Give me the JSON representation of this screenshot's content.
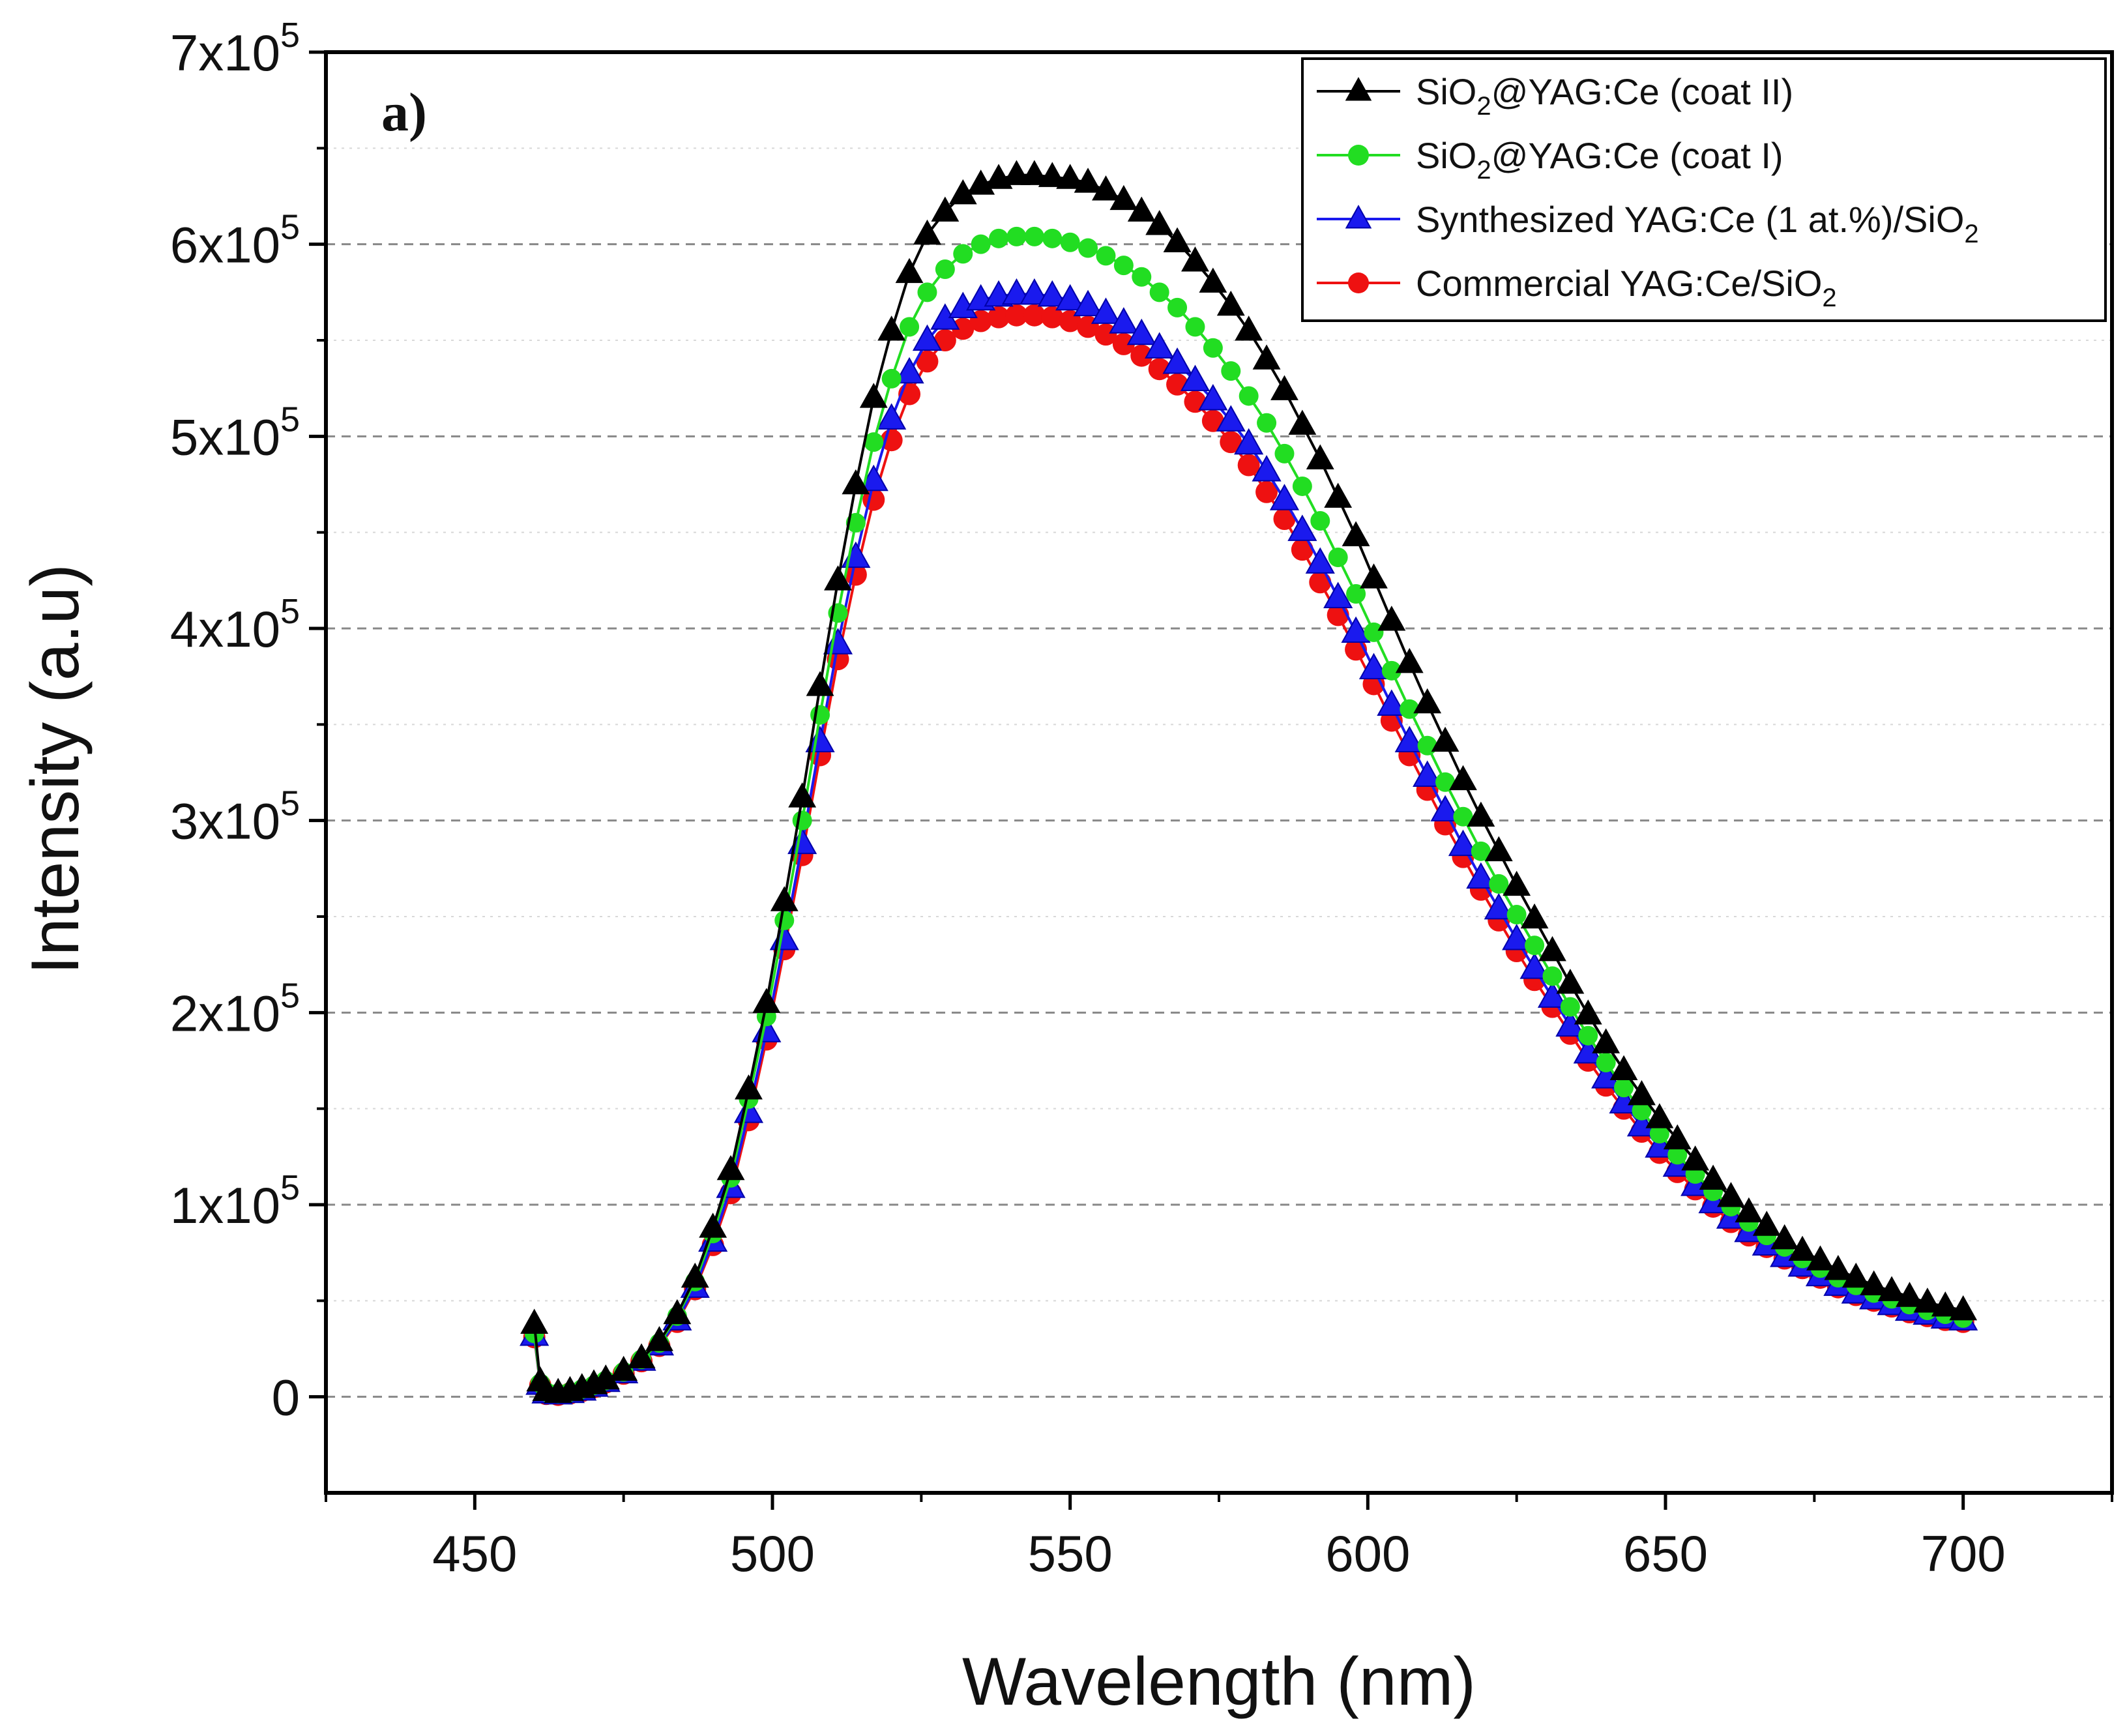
{
  "chart_data": {
    "type": "scatter",
    "panel_label": "a)",
    "xlabel": "Wavelength (nm)",
    "ylabel": "Intensity (a.u)",
    "xlim": [
      425,
      725
    ],
    "ylim": [
      -50000,
      700000
    ],
    "x_ticks": [
      450,
      500,
      550,
      600,
      650,
      700
    ],
    "y_ticks": [
      {
        "value": 0,
        "mant": "0",
        "exp": ""
      },
      {
        "value": 100000,
        "mant": "1x10",
        "exp": "5"
      },
      {
        "value": 200000,
        "mant": "2x10",
        "exp": "5"
      },
      {
        "value": 300000,
        "mant": "3x10",
        "exp": "5"
      },
      {
        "value": 400000,
        "mant": "4x10",
        "exp": "5"
      },
      {
        "value": 500000,
        "mant": "5x10",
        "exp": "5"
      },
      {
        "value": 600000,
        "mant": "6x10",
        "exp": "5"
      },
      {
        "value": 700000,
        "mant": "7x10",
        "exp": "5"
      }
    ],
    "grid": "horizontal dashed",
    "legend_position": "top-right",
    "x": [
      460,
      461,
      462,
      464,
      466,
      468,
      470,
      472,
      475,
      478,
      481,
      484,
      487,
      490,
      493,
      496,
      499,
      502,
      505,
      508,
      511,
      514,
      517,
      520,
      523,
      526,
      529,
      532,
      535,
      538,
      541,
      544,
      547,
      550,
      553,
      556,
      559,
      562,
      565,
      568,
      571,
      574,
      577,
      580,
      583,
      586,
      589,
      592,
      595,
      598,
      601,
      604,
      607,
      610,
      613,
      616,
      619,
      622,
      625,
      628,
      631,
      634,
      637,
      640,
      643,
      646,
      649,
      652,
      655,
      658,
      661,
      664,
      667,
      670,
      673,
      676,
      679,
      682,
      685,
      688,
      691,
      694,
      697,
      700
    ],
    "series": [
      {
        "name": "SiO",
        "name_sub": "2",
        "name_tail": "@YAG:Ce (coat II)",
        "color": "#000000",
        "marker": "triangle",
        "values": [
          38000,
          8000,
          3000,
          2000,
          3000,
          4500,
          6500,
          9000,
          13500,
          20000,
          29000,
          43000,
          62000,
          88000,
          118000,
          160000,
          205000,
          258000,
          312000,
          370000,
          425000,
          475000,
          520000,
          555000,
          585000,
          605000,
          617000,
          626000,
          631000,
          634000,
          636000,
          636000,
          635000,
          634000,
          632000,
          628000,
          623000,
          617000,
          610000,
          601000,
          591000,
          580000,
          568000,
          555000,
          540000,
          524000,
          506000,
          488000,
          468000,
          448000,
          426000,
          404000,
          382000,
          361000,
          341000,
          321000,
          302000,
          284000,
          266000,
          249000,
          232000,
          215000,
          199000,
          184000,
          170000,
          157000,
          145000,
          134000,
          123000,
          113000,
          104000,
          96000,
          89000,
          82000,
          76000,
          71000,
          66000,
          62000,
          58000,
          55000,
          52000,
          49000,
          47000,
          45000
        ]
      },
      {
        "name": "SiO",
        "name_sub": "2",
        "name_tail": "@YAG:Ce (coat I)",
        "color": "#22dd22",
        "marker": "circle",
        "values": [
          33000,
          7000,
          2500,
          1800,
          2500,
          4000,
          6000,
          8500,
          13000,
          19500,
          28000,
          42000,
          60000,
          85000,
          114000,
          155000,
          198000,
          248000,
          300000,
          355000,
          408000,
          455000,
          497000,
          530000,
          557000,
          575000,
          587000,
          595000,
          600000,
          603000,
          604000,
          604000,
          603000,
          601000,
          598000,
          594000,
          589000,
          583000,
          575000,
          567000,
          557000,
          546000,
          534000,
          521000,
          507000,
          491000,
          474000,
          456000,
          437000,
          418000,
          398000,
          378000,
          358000,
          339000,
          320000,
          302000,
          284000,
          267000,
          251000,
          235000,
          219000,
          203000,
          188000,
          174000,
          161000,
          149000,
          137000,
          126000,
          116000,
          107000,
          99000,
          91000,
          84000,
          78000,
          72000,
          67000,
          62000,
          58000,
          54000,
          51000,
          48000,
          45000,
          43000,
          41000
        ]
      },
      {
        "name": "Synthesized YAG:Ce (1 at.%)/SiO",
        "name_sub": "2",
        "name_tail": "",
        "color": "#1a1aee",
        "marker": "triangle",
        "values": [
          32000,
          6500,
          2000,
          1500,
          2200,
          3500,
          5500,
          8000,
          12500,
          19000,
          27000,
          40000,
          57000,
          81000,
          109000,
          148000,
          190000,
          238000,
          288000,
          341000,
          392000,
          437000,
          477000,
          509000,
          533000,
          550000,
          561000,
          567000,
          571000,
          573000,
          574000,
          574000,
          573000,
          571000,
          568000,
          564000,
          559000,
          553000,
          546000,
          538000,
          529000,
          519000,
          508000,
          496000,
          482000,
          467000,
          451000,
          434000,
          416000,
          398000,
          379000,
          360000,
          341000,
          323000,
          305000,
          287000,
          270000,
          254000,
          238000,
          223000,
          208000,
          193000,
          179000,
          166000,
          153000,
          141000,
          130000,
          120000,
          110000,
          101000,
          93000,
          86000,
          79000,
          73000,
          68000,
          63000,
          58000,
          54000,
          51000,
          48000,
          45000,
          43000,
          41000,
          40000
        ]
      },
      {
        "name": "Commercial YAG:Ce/SiO",
        "name_sub": "2",
        "name_tail": "",
        "color": "#ee1111",
        "marker": "circle",
        "values": [
          31000,
          6000,
          1500,
          1000,
          1800,
          3000,
          5000,
          7500,
          12000,
          18500,
          26500,
          39000,
          56000,
          79000,
          106000,
          144000,
          186000,
          233000,
          282000,
          334000,
          384000,
          428000,
          467000,
          498000,
          522000,
          539000,
          550000,
          556000,
          560000,
          562000,
          563000,
          563000,
          562000,
          560000,
          557000,
          553000,
          548000,
          542000,
          535000,
          527000,
          518000,
          508000,
          497000,
          485000,
          471000,
          457000,
          441000,
          424000,
          407000,
          389000,
          371000,
          352000,
          334000,
          316000,
          298000,
          281000,
          264000,
          248000,
          232000,
          217000,
          203000,
          189000,
          175000,
          162000,
          150000,
          138000,
          127000,
          117000,
          108000,
          99000,
          91000,
          84000,
          78000,
          72000,
          67000,
          62000,
          57000,
          53000,
          50000,
          47000,
          44000,
          42000,
          40000,
          39000
        ]
      }
    ]
  }
}
